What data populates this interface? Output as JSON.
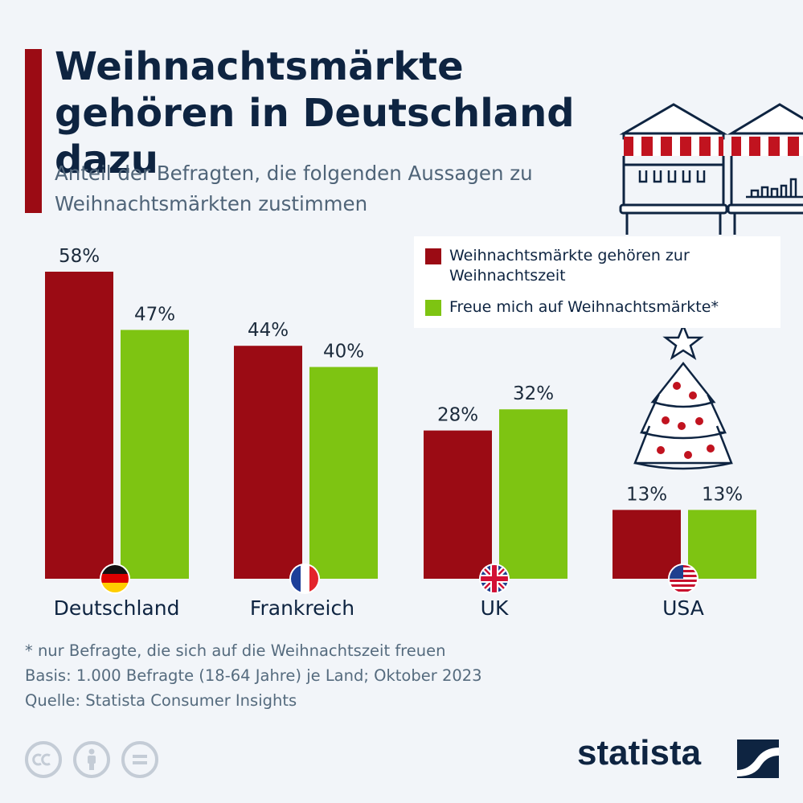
{
  "title": "Weihnachtsmärkte gehören in Deutschland dazu",
  "subtitle": "Anteil der Befragten, die folgenden Aussagen zu Weihnachtsmärkten zustimmen",
  "legend": {
    "series1": "Weihnachtsmärkte gehören zur Weihnachtszeit",
    "series2": "Freue mich auf Weihnachtsmärkte*"
  },
  "footnotes": {
    "note": "* nur Befragte, die sich auf die Weihnachtszeit freuen",
    "basis": "Basis: 1.000 Befragte (18-64 Jahre) je Land; Oktober 2023",
    "source": "Quelle: Statista Consumer Insights"
  },
  "brand": "statista",
  "icons": [
    "market-stall-icon",
    "christmas-tree-icon",
    "flag-germany-icon",
    "flag-france-icon",
    "flag-uk-icon",
    "flag-usa-icon",
    "cc-license-icon",
    "by-license-icon",
    "nd-license-icon",
    "statista-logo-icon"
  ],
  "colors": {
    "series1": "#9b0b14",
    "series2": "#7ec412",
    "title": "#0e2441",
    "background": "#f2f5f9"
  },
  "chart_data": {
    "type": "bar",
    "categories": [
      "Deutschland",
      "Frankreich",
      "UK",
      "USA"
    ],
    "series": [
      {
        "name": "Weihnachtsmärkte gehören zur Weihnachtszeit",
        "values": [
          58,
          44,
          28,
          13
        ],
        "labels": [
          "58%",
          "44%",
          "28%",
          "13%"
        ],
        "color": "#9b0b14"
      },
      {
        "name": "Freue mich auf Weihnachtsmärkte*",
        "values": [
          47,
          40,
          32,
          13
        ],
        "labels": [
          "47%",
          "40%",
          "32%",
          "13%"
        ],
        "color": "#7ec412"
      }
    ],
    "unit": "%",
    "ylim": [
      0,
      58
    ],
    "grid": false,
    "legend_position": "top-right"
  }
}
